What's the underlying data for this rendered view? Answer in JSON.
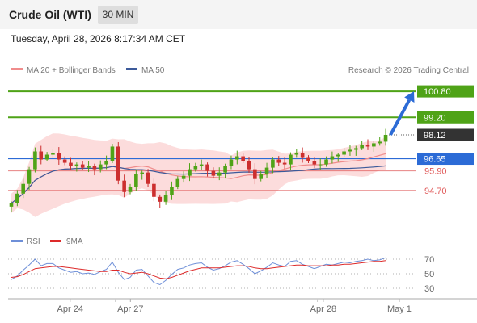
{
  "header": {
    "title": "Crude Oil (WTI)",
    "timeframe": "30 MIN",
    "datetime": "Tuesday, April 28, 2026 8:17:34 AM CET"
  },
  "colors": {
    "support": "#2c6bd6",
    "resistance": "#4fa317",
    "pivot": "#e05a5a",
    "bullish_candle": "#4fa317",
    "bearish_candle": "#cc2f2f",
    "ma20": "#f08c8c",
    "bollinger_band": "#fbd6d6",
    "ma50": "#3c5a9a",
    "rsi": "#6e8fd8",
    "rsi_ma": "#dd2a2a",
    "forecast_arrow": "#2c6bd6",
    "current_price": "#333333"
  },
  "chart_data": [
    {
      "type": "candlestick",
      "title": "",
      "legend": [
        {
          "name": "MA 20 + Bollinger Bands",
          "color": "#f08c8c"
        },
        {
          "name": "MA 50",
          "color": "#3c5a9a"
        }
      ],
      "credit": "Research © 2026 Trading Central",
      "x_ticks": [
        "Apr 24",
        "Apr 27",
        "Apr 28",
        "May 1"
      ],
      "y_range": [
        92.5,
        101.6
      ],
      "price_levels": [
        {
          "value": 100.8,
          "label": "100.80",
          "type": "resistance",
          "tagged": true
        },
        {
          "value": 99.2,
          "label": "99.20",
          "type": "resistance",
          "tagged": true
        },
        {
          "value": 98.12,
          "label": "98.12",
          "type": "current",
          "tagged": true
        },
        {
          "value": 96.65,
          "label": "96.65",
          "type": "support",
          "tagged": true
        },
        {
          "value": 95.9,
          "label": "95.90",
          "type": "pivot",
          "tagged": false
        },
        {
          "value": 94.7,
          "label": "94.70",
          "type": "pivot",
          "tagged": false
        }
      ],
      "forecast_arrow": {
        "from": 98.12,
        "to": 100.8
      },
      "session_closes": [
        [
          93.9,
          94.5,
          95.1,
          96.0,
          97.1,
          96.6,
          96.9,
          97.0,
          96.6,
          96.4,
          96.2,
          96.3,
          96.1,
          96.2,
          96.0,
          96.3,
          96.5,
          97.4
        ],
        [
          95.3,
          94.6,
          94.9,
          95.7,
          95.8,
          95.1,
          94.3,
          94.0,
          94.4,
          94.9,
          95.4,
          95.6,
          96.0,
          96.2,
          96.3,
          95.9,
          95.6,
          95.8,
          96.2,
          96.6,
          96.8,
          96.5,
          96.0,
          95.4,
          95.7,
          96.1,
          96.6,
          96.4,
          96.3,
          96.9,
          97.0,
          96.7,
          96.5,
          96.3
        ],
        [
          96.3,
          96.6,
          96.8,
          96.9,
          97.1,
          97.2,
          97.3,
          97.5,
          97.4,
          97.6,
          97.7,
          98.12
        ]
      ],
      "first_open": 93.7,
      "candle_count": 64,
      "bars_before_extreme": 27
    },
    {
      "type": "line",
      "title": "RSI",
      "legend": [
        {
          "name": "RSI",
          "color": "#6e8fd8"
        },
        {
          "name": "9MA",
          "color": "#dd2a2a"
        }
      ],
      "y_ticks": [
        70,
        50,
        30
      ],
      "y_range": [
        20,
        80
      ],
      "series": [
        {
          "name": "RSI",
          "values": [
            42,
            47,
            55,
            62,
            70,
            61,
            64,
            64,
            58,
            55,
            52,
            53,
            50,
            51,
            49,
            53,
            56,
            66,
            52,
            42,
            45,
            55,
            56,
            47,
            38,
            35,
            41,
            49,
            56,
            58,
            62,
            64,
            65,
            59,
            55,
            57,
            61,
            66,
            68,
            63,
            57,
            50,
            54,
            59,
            65,
            62,
            60,
            67,
            68,
            63,
            60,
            57,
            60,
            63,
            62,
            64,
            66,
            65,
            67,
            68,
            70,
            68,
            69,
            72
          ]
        },
        {
          "name": "9MA",
          "values": [
            45,
            46,
            49,
            53,
            57,
            58,
            59,
            60,
            60,
            59,
            58,
            57,
            56,
            55,
            54,
            53,
            53,
            55,
            55,
            52,
            50,
            51,
            52,
            50,
            47,
            44,
            43,
            45,
            48,
            51,
            54,
            56,
            58,
            58,
            58,
            58,
            59,
            60,
            61,
            61,
            60,
            58,
            57,
            57,
            58,
            59,
            60,
            61,
            62,
            62,
            61,
            61,
            61,
            61,
            62,
            62,
            63,
            63,
            64,
            65,
            66,
            67,
            67,
            68
          ]
        }
      ]
    }
  ]
}
